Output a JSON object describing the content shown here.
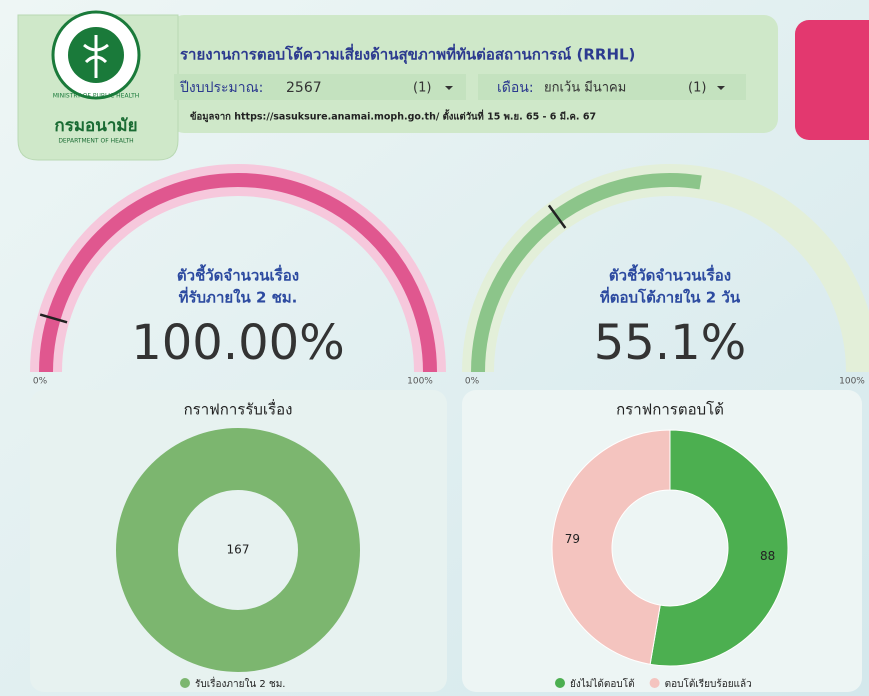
{
  "header": {
    "title": "รายงานการตอบโต้ความเสี่ยงด้านสุขภาพที่ทันต่อสถานการณ์ (RRHL)",
    "fiscal_label": "ปีงบประมาณ:",
    "fiscal_value": "2567",
    "fiscal_count": "(1)",
    "month_label": "เดือน:",
    "month_value": "ยกเว้น มีนาคม",
    "month_count": "(1)",
    "source": "ข้อมูลจาก https://sasuksure.anamai.moph.go.th/ ตั้งแต่วันที่ 15 พ.ย. 65 - 6 มี.ค. 67"
  },
  "logo": {
    "ring_text": "MINISTRY OF PUBLIC HEALTH",
    "org_name": "กรมอนามัย",
    "org_en": "DEPARTMENT OF HEALTH"
  },
  "gauges": [
    {
      "title_line1": "ตัวชี้วัดจำนวนเรื่อง",
      "title_line2": "ที่รับภายใน 2 ชม.",
      "value": 100,
      "value_label": "100.00%",
      "target": 9,
      "min": 0,
      "max": 100,
      "min_label": "0%",
      "max_label": "100%",
      "color": "#e0578f",
      "track_color": "#f6c8dc"
    },
    {
      "title_line1": "ตัวชี้วัดจำนวนเรื่อง",
      "title_line2": "ที่ตอบโต้ภายใน 2 วัน",
      "value": 55.1,
      "value_label": "55.1%",
      "target": 30,
      "min": 0,
      "max": 100,
      "min_label": "0%",
      "max_label": "100%",
      "color": "#8cc58a",
      "track_color": "#e3efd9"
    }
  ],
  "donuts": [
    {
      "title": "กราฟการรับเรื่อง",
      "slices": [
        {
          "name": "รับเรื่องภายใน 2 ชม.",
          "value": 167,
          "color": "#7cb66f"
        }
      ]
    },
    {
      "title": "กราฟการตอบโต้",
      "slices": [
        {
          "name": "ยังไม่ได้ตอบโต้",
          "value": 88,
          "color": "#4caf50"
        },
        {
          "name": "ตอบโต้เรียบร้อยแล้ว",
          "value": 79,
          "color": "#f4c4bf"
        }
      ]
    }
  ]
}
